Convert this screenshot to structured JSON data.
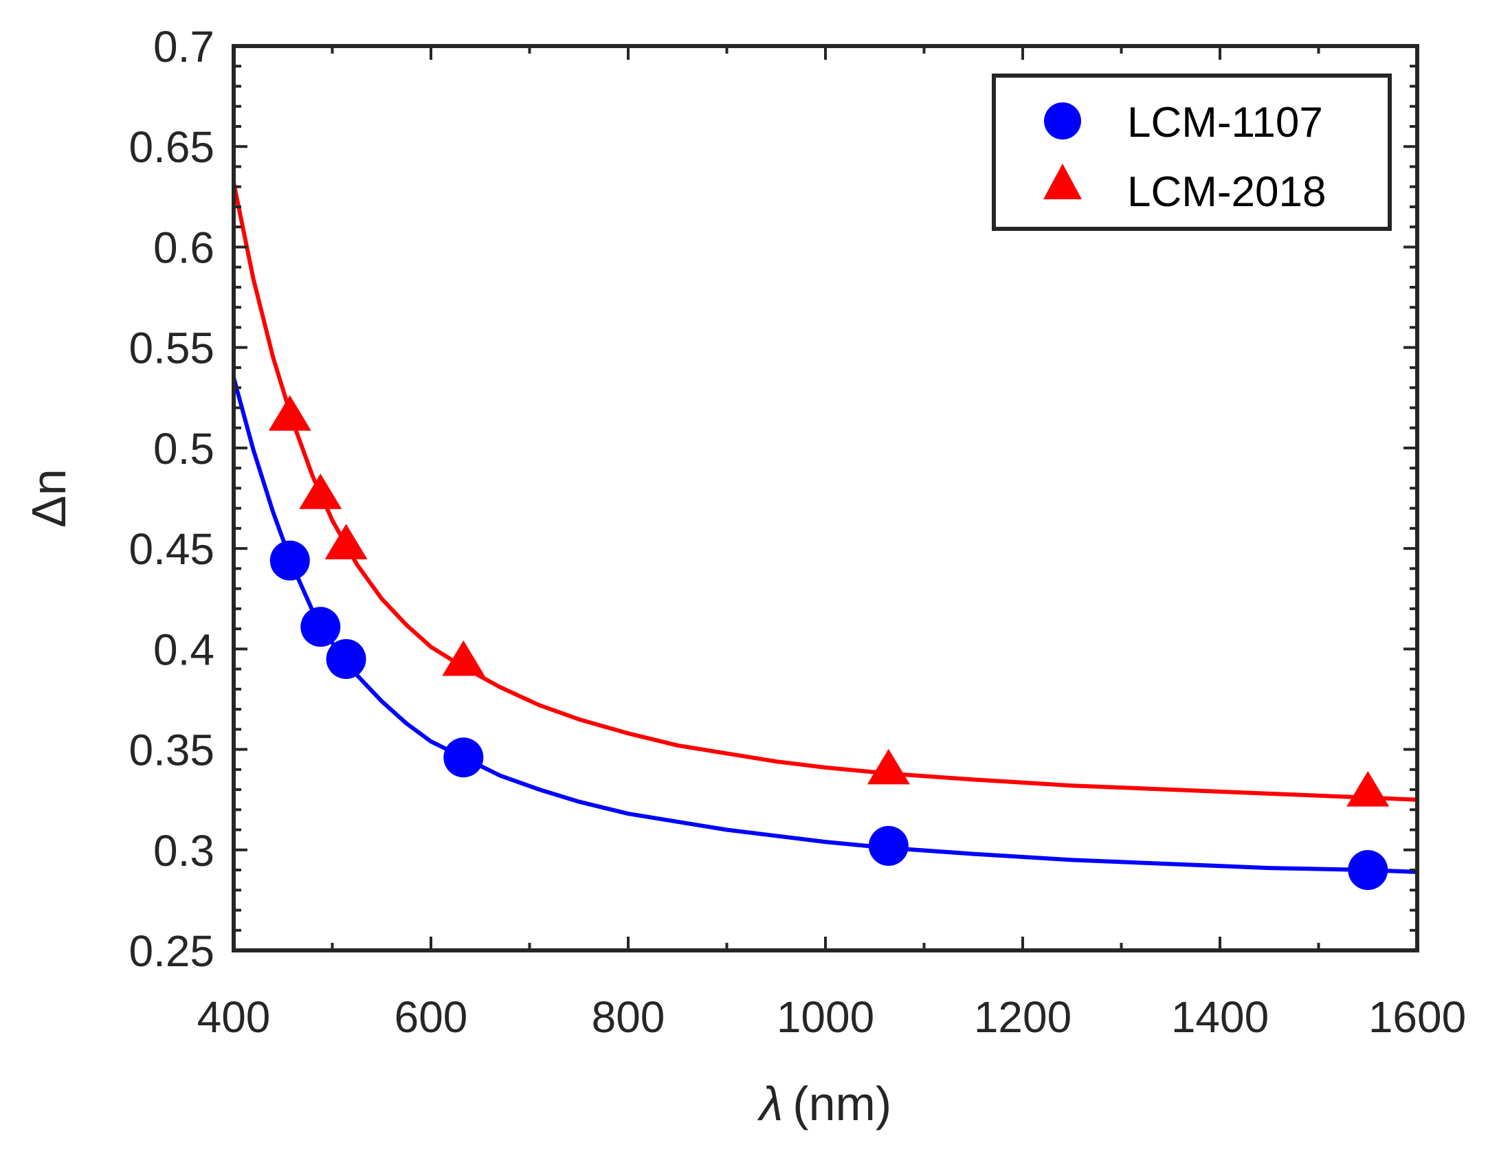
{
  "chart_data": {
    "type": "scatter",
    "title": "",
    "xlabel_symbol": "λ",
    "xlabel_unit": "(nm)",
    "ylabel": "Δn",
    "xlim": [
      400,
      1600
    ],
    "ylim": [
      0.25,
      0.7
    ],
    "xticks": [
      400,
      600,
      800,
      1000,
      1200,
      1400,
      1600
    ],
    "xtick_labels": [
      "400",
      "600",
      "800",
      "1000",
      "1200",
      "1400",
      "1600"
    ],
    "yticks": [
      0.25,
      0.3,
      0.35,
      0.4,
      0.45,
      0.5,
      0.55,
      0.6,
      0.65,
      0.7
    ],
    "ytick_labels": [
      "0.25",
      "0.3",
      "0.35",
      "0.4",
      "0.45",
      "0.5",
      "0.55",
      "0.6",
      "0.65",
      "0.7"
    ],
    "grid": false,
    "legend_position": "top-right",
    "series": [
      {
        "name": "LCM-1107",
        "marker": "circle",
        "color": "#0000ff",
        "points": [
          {
            "x": 457,
            "y": 0.444
          },
          {
            "x": 488,
            "y": 0.411
          },
          {
            "x": 514,
            "y": 0.395
          },
          {
            "x": 633,
            "y": 0.346
          },
          {
            "x": 1064,
            "y": 0.302
          },
          {
            "x": 1550,
            "y": 0.29
          }
        ],
        "fit": [
          {
            "x": 400,
            "y": 0.535
          },
          {
            "x": 420,
            "y": 0.499
          },
          {
            "x": 440,
            "y": 0.468
          },
          {
            "x": 460,
            "y": 0.441
          },
          {
            "x": 480,
            "y": 0.419
          },
          {
            "x": 500,
            "y": 0.403
          },
          {
            "x": 525,
            "y": 0.387
          },
          {
            "x": 550,
            "y": 0.374
          },
          {
            "x": 575,
            "y": 0.363
          },
          {
            "x": 600,
            "y": 0.354
          },
          {
            "x": 633,
            "y": 0.346
          },
          {
            "x": 670,
            "y": 0.337
          },
          {
            "x": 710,
            "y": 0.33
          },
          {
            "x": 750,
            "y": 0.324
          },
          {
            "x": 800,
            "y": 0.318
          },
          {
            "x": 850,
            "y": 0.314
          },
          {
            "x": 900,
            "y": 0.31
          },
          {
            "x": 950,
            "y": 0.307
          },
          {
            "x": 1000,
            "y": 0.304
          },
          {
            "x": 1064,
            "y": 0.301
          },
          {
            "x": 1150,
            "y": 0.298
          },
          {
            "x": 1250,
            "y": 0.295
          },
          {
            "x": 1350,
            "y": 0.293
          },
          {
            "x": 1450,
            "y": 0.291
          },
          {
            "x": 1550,
            "y": 0.29
          },
          {
            "x": 1600,
            "y": 0.289
          }
        ]
      },
      {
        "name": "LCM-2018",
        "marker": "triangle",
        "color": "#ff0000",
        "points": [
          {
            "x": 457,
            "y": 0.516
          },
          {
            "x": 488,
            "y": 0.477
          },
          {
            "x": 514,
            "y": 0.452
          },
          {
            "x": 633,
            "y": 0.394
          },
          {
            "x": 1064,
            "y": 0.34
          },
          {
            "x": 1550,
            "y": 0.329
          }
        ],
        "fit": [
          {
            "x": 400,
            "y": 0.632
          },
          {
            "x": 420,
            "y": 0.584
          },
          {
            "x": 440,
            "y": 0.545
          },
          {
            "x": 460,
            "y": 0.513
          },
          {
            "x": 480,
            "y": 0.486
          },
          {
            "x": 500,
            "y": 0.464
          },
          {
            "x": 525,
            "y": 0.442
          },
          {
            "x": 550,
            "y": 0.425
          },
          {
            "x": 575,
            "y": 0.412
          },
          {
            "x": 600,
            "y": 0.401
          },
          {
            "x": 633,
            "y": 0.391
          },
          {
            "x": 670,
            "y": 0.381
          },
          {
            "x": 710,
            "y": 0.372
          },
          {
            "x": 750,
            "y": 0.365
          },
          {
            "x": 800,
            "y": 0.358
          },
          {
            "x": 850,
            "y": 0.352
          },
          {
            "x": 900,
            "y": 0.348
          },
          {
            "x": 950,
            "y": 0.344
          },
          {
            "x": 1000,
            "y": 0.341
          },
          {
            "x": 1064,
            "y": 0.338
          },
          {
            "x": 1150,
            "y": 0.335
          },
          {
            "x": 1250,
            "y": 0.332
          },
          {
            "x": 1350,
            "y": 0.33
          },
          {
            "x": 1450,
            "y": 0.328
          },
          {
            "x": 1550,
            "y": 0.326
          },
          {
            "x": 1600,
            "y": 0.325
          }
        ]
      }
    ]
  }
}
